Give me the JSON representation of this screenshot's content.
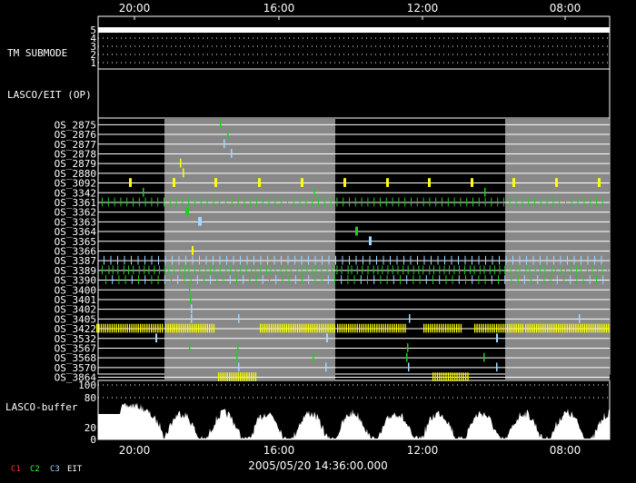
{
  "chart_data": {
    "type": "timeline",
    "x_ticks": [
      "20:00",
      "16:00",
      "12:00",
      "08:00"
    ],
    "timestamp": "2005/05/20 14:36:00.000",
    "tm_submode": {
      "label": "TM SUBMODE",
      "levels": [
        "5",
        "4",
        "3",
        "2",
        "1"
      ],
      "value": "5"
    },
    "lasco_eit_label": "LASCO/EIT (OP)",
    "os_rows": [
      "OS_2875",
      "OS_2876",
      "OS_2877",
      "OS_2878",
      "OS_2879",
      "OS_2880",
      "OS_3092",
      "OS_3342",
      "OS_3361",
      "OS_3362",
      "OS_3363",
      "OS_3364",
      "OS_3365",
      "OS_3366",
      "OS_3387",
      "OS_3389",
      "OS_3390",
      "OS_3400",
      "OS_3401",
      "OS_3402",
      "OS_3405",
      "OS_3422",
      "OS_3532",
      "OS_3567",
      "OS_3568",
      "OS_3570",
      "OS_3864"
    ],
    "buffer": {
      "label": "LASCO-buffer",
      "y_ticks": [
        "100",
        "80",
        "20",
        "0"
      ]
    },
    "legend": [
      {
        "text": "C1",
        "color": "#ff3030"
      },
      {
        "text": "C2",
        "color": "#30ff30"
      },
      {
        "text": "C3",
        "color": "#a0d8ff"
      },
      {
        "text": "EIT",
        "color": "#ffffff"
      }
    ],
    "colors": {
      "shade": "#888888",
      "c1": "#ff3030",
      "c2": "#22cc22",
      "c3": "#a0d8ff",
      "eit_yellow": "#ffff00"
    }
  }
}
